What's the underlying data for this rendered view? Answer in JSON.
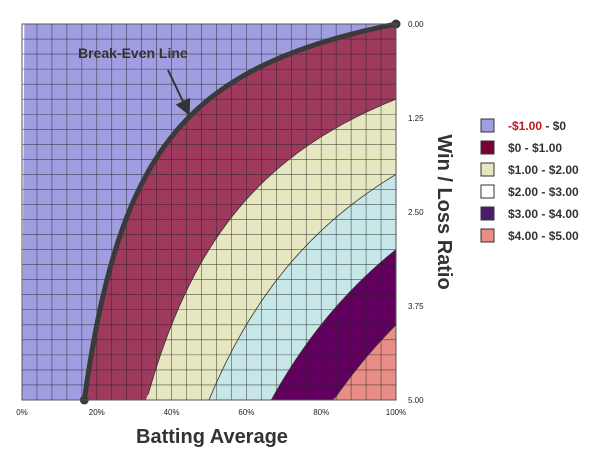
{
  "chart_data": {
    "type": "area",
    "xlabel": "Batting Average",
    "ylabel": "Win / Loss Ratio",
    "xlim": [
      0,
      100
    ],
    "ylim": [
      0,
      5
    ],
    "y_axis_inverted": true,
    "y_axis_position": "right",
    "x_ticks": [
      "0%",
      "20%",
      "40%",
      "60%",
      "80%",
      "100%"
    ],
    "x_tick_values": [
      0,
      20,
      40,
      60,
      80,
      100
    ],
    "y_ticks": [
      "0.00",
      "1.25",
      "2.50",
      "3.75",
      "5.00"
    ],
    "y_tick_values": [
      0,
      1.25,
      2.5,
      3.75,
      5
    ],
    "grid": true,
    "legend_position": "right",
    "bands": [
      {
        "label_part1": "-$1.00",
        "label_part2": " - $0",
        "expectancy_min": -1,
        "expectancy_max": 0,
        "color": "#a09ee0",
        "label_part1_color": "#c0141c"
      },
      {
        "label_part1": "$0 - $1.00",
        "label_part2": "",
        "expectancy_min": 0,
        "expectancy_max": 1,
        "color": "#9e3a5e",
        "label_part1_color": "#333333"
      },
      {
        "label_part1": "$1.00 - $2.00",
        "label_part2": "",
        "expectancy_min": 1,
        "expectancy_max": 2,
        "color": "#e6e6c0",
        "label_part1_color": "#333333"
      },
      {
        "label_part1": "$2.00 - $3.00",
        "label_part2": "",
        "expectancy_min": 2,
        "expectancy_max": 3,
        "color": "#c6e6e8",
        "label_part1_color": "#333333"
      },
      {
        "label_part1": "$3.00 - $4.00",
        "label_part2": "",
        "expectancy_min": 3,
        "expectancy_max": 4,
        "color": "#620060",
        "label_part1_color": "#333333"
      },
      {
        "label_part1": "$4.00 - $5.00",
        "label_part2": "",
        "expectancy_min": 4,
        "expectancy_max": 5,
        "color": "#e88e86",
        "label_part1_color": "#333333"
      }
    ],
    "legend_swatch_colors": [
      "#a09ee0",
      "#7a0038",
      "#e6e6c0",
      "#ffffff",
      "#4a1c6a",
      "#e88e86"
    ],
    "break_even": {
      "label": "Break-Even Line",
      "points": [
        {
          "x": 16.7,
          "y": 5
        },
        {
          "x": 20,
          "y": 4
        },
        {
          "x": 25,
          "y": 3
        },
        {
          "x": 33.3,
          "y": 2
        },
        {
          "x": 40,
          "y": 1.5
        },
        {
          "x": 50,
          "y": 1
        },
        {
          "x": 60,
          "y": 0.667
        },
        {
          "x": 75,
          "y": 0.333
        },
        {
          "x": 100,
          "y": 0
        }
      ],
      "color": "#3a3a3a"
    }
  }
}
